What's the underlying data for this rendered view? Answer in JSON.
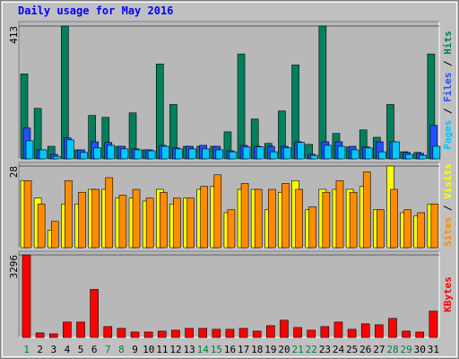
{
  "title": "Daily usage for May 2016",
  "legend_separator": " / ",
  "chart_data": [
    {
      "type": "bar",
      "categories": [
        "1",
        "2",
        "3",
        "4",
        "5",
        "6",
        "7",
        "8",
        "9",
        "10",
        "11",
        "12",
        "13",
        "14",
        "15",
        "16",
        "17",
        "18",
        "19",
        "20",
        "21",
        "22",
        "23",
        "24",
        "25",
        "26",
        "27",
        "28",
        "29",
        "30",
        "31"
      ],
      "ylim": [
        0,
        413
      ],
      "yticks": [
        413
      ],
      "series": [
        {
          "name": "Hits",
          "color": "#00805c",
          "values": [
            264,
            157,
            39,
            413,
            28,
            135,
            129,
            39,
            143,
            28,
            295,
            169,
            39,
            39,
            39,
            84,
            326,
            124,
            48,
            149,
            292,
            45,
            413,
            79,
            37,
            90,
            67,
            169,
            22,
            20,
            326
          ]
        },
        {
          "name": "Files",
          "color": "#2050ff",
          "values": [
            96,
            28,
            14,
            65,
            28,
            53,
            51,
            39,
            31,
            28,
            42,
            34,
            39,
            42,
            39,
            25,
            42,
            39,
            39,
            39,
            53,
            14,
            53,
            53,
            39,
            37,
            53,
            53,
            20,
            17,
            104
          ]
        },
        {
          "name": "Pages",
          "color": "#00c8ff",
          "values": [
            56,
            28,
            8,
            59,
            20,
            34,
            42,
            31,
            28,
            25,
            39,
            31,
            31,
            31,
            28,
            22,
            37,
            37,
            22,
            34,
            51,
            11,
            42,
            39,
            28,
            34,
            22,
            53,
            14,
            11,
            39
          ]
        }
      ]
    },
    {
      "type": "bar",
      "categories": [
        "1",
        "2",
        "3",
        "4",
        "5",
        "6",
        "7",
        "8",
        "9",
        "10",
        "11",
        "12",
        "13",
        "14",
        "15",
        "16",
        "17",
        "18",
        "19",
        "20",
        "21",
        "22",
        "23",
        "24",
        "25",
        "26",
        "27",
        "28",
        "29",
        "30",
        "31"
      ],
      "ylim": [
        0,
        28
      ],
      "yticks": [
        28
      ],
      "series": [
        {
          "name": "Visits",
          "color": "#ffff00",
          "values": [
            23,
            17,
            6,
            15,
            15,
            20,
            20,
            17,
            17,
            16,
            20,
            15,
            17,
            20,
            21,
            12,
            20,
            20,
            13,
            19,
            23,
            13,
            20,
            20,
            20,
            21,
            13,
            28,
            12,
            11,
            15
          ]
        },
        {
          "name": "Sites",
          "color": "#ff8c00",
          "values": [
            23,
            15,
            9,
            23,
            19,
            20,
            24,
            18,
            20,
            17,
            19,
            17,
            17,
            21,
            25,
            13,
            22,
            20,
            20,
            22,
            20,
            14,
            19,
            23,
            19,
            26,
            13,
            20,
            13,
            12,
            15
          ]
        }
      ]
    },
    {
      "type": "bar",
      "categories": [
        "1",
        "2",
        "3",
        "4",
        "5",
        "6",
        "7",
        "8",
        "9",
        "10",
        "11",
        "12",
        "13",
        "14",
        "15",
        "16",
        "17",
        "18",
        "19",
        "20",
        "21",
        "22",
        "23",
        "24",
        "25",
        "26",
        "27",
        "28",
        "29",
        "30",
        "31"
      ],
      "category_colors": [
        "#008040",
        "#000000",
        "#000000",
        "#000000",
        "#000000",
        "#000000",
        "#008040",
        "#008040",
        "#000000",
        "#000000",
        "#000000",
        "#000000",
        "#000000",
        "#008040",
        "#008040",
        "#000000",
        "#000000",
        "#000000",
        "#000000",
        "#000000",
        "#008040",
        "#008040",
        "#000000",
        "#000000",
        "#000000",
        "#000000",
        "#000000",
        "#008040",
        "#008040",
        "#000000",
        "#000000"
      ],
      "ylim": [
        0,
        3296
      ],
      "yticks": [
        3296
      ],
      "series": [
        {
          "name": "KBytes",
          "color": "#ff0000",
          "values": [
            3296,
            181,
            145,
            615,
            615,
            1919,
            434,
            362,
            217,
            217,
            253,
            290,
            362,
            362,
            326,
            326,
            362,
            253,
            470,
            688,
            398,
            290,
            434,
            615,
            326,
            543,
            507,
            760,
            253,
            217,
            1050
          ]
        }
      ]
    }
  ]
}
